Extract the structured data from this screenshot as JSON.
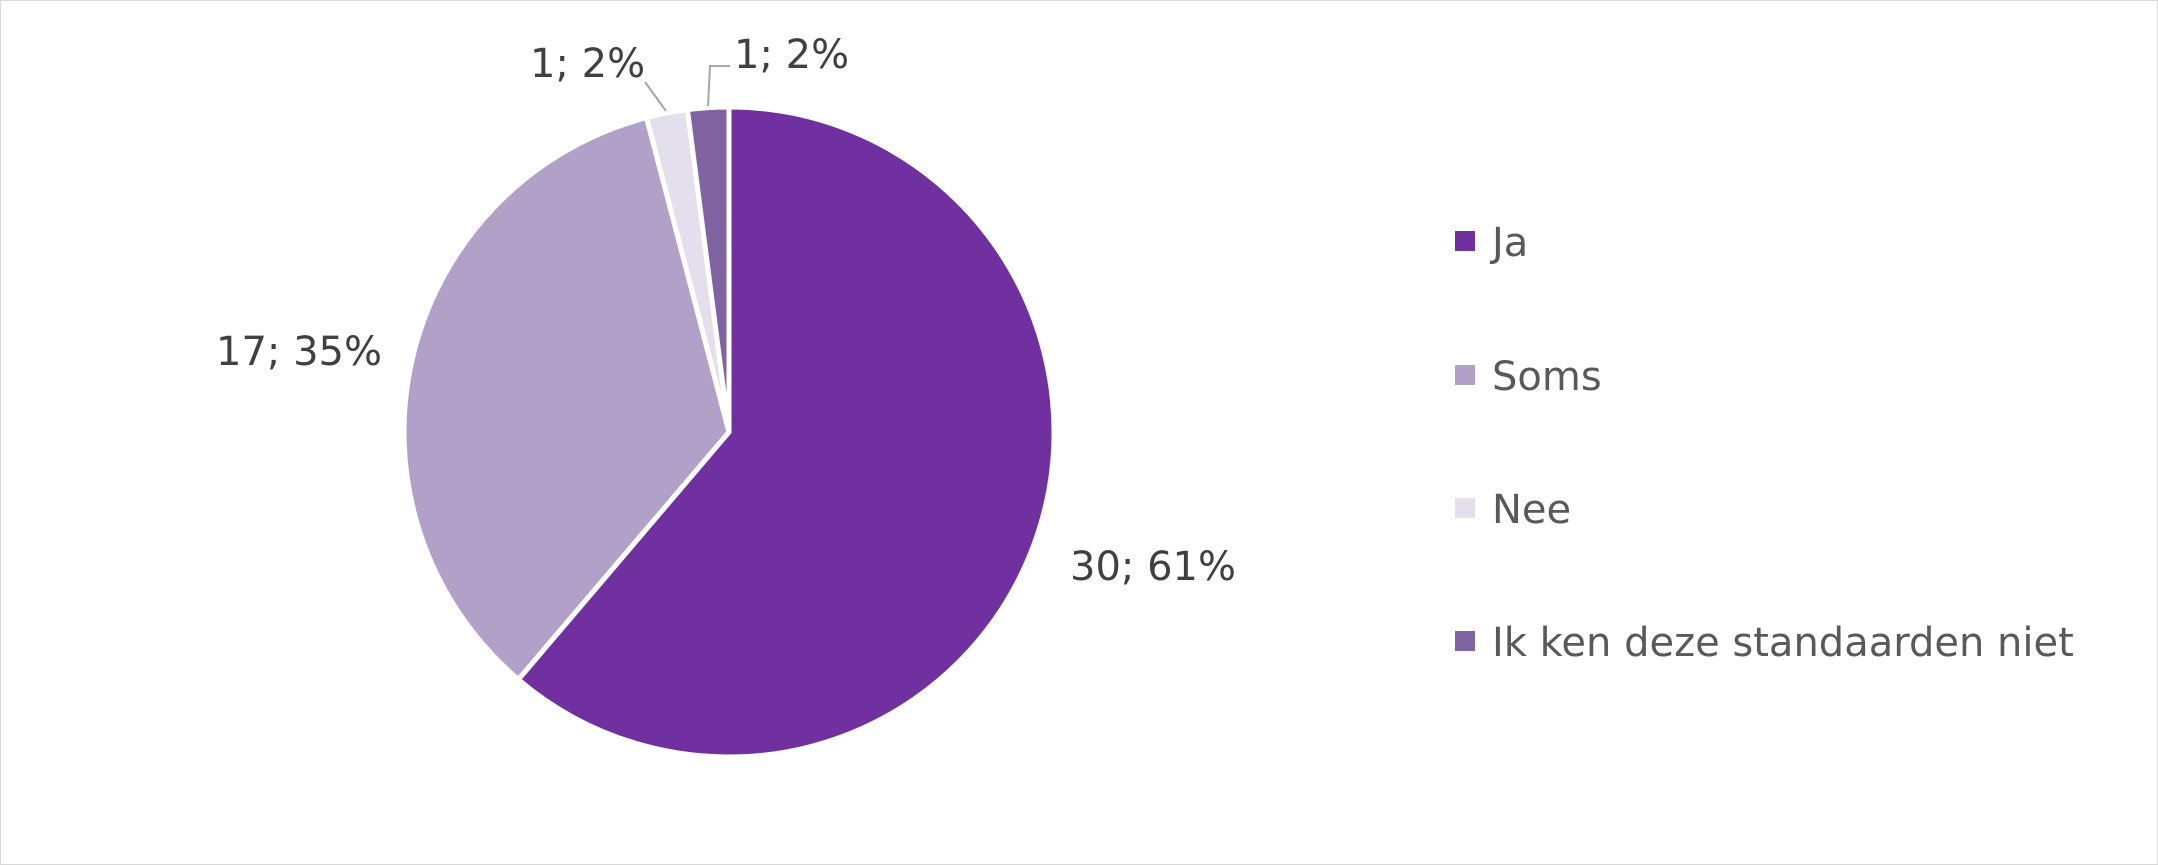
{
  "chart_data": {
    "type": "pie",
    "categories": [
      "Ja",
      "Soms",
      "Nee",
      "Ik ken deze standaarden niet"
    ],
    "values": [
      30,
      17,
      1,
      1
    ],
    "percentages": [
      61,
      35,
      2,
      2
    ],
    "data_labels": [
      "30; 61%",
      "17; 35%",
      "1; 2%",
      "1; 2%"
    ],
    "colors": [
      "#7030a0",
      "#b1a0c7",
      "#e4dfec",
      "#8064a2"
    ],
    "legend": {
      "position": "right",
      "entries": [
        "Ja",
        "Soms",
        "Nee",
        "Ik ken deze standaarden niet"
      ]
    },
    "start_angle": "12 o'clock",
    "direction": "clockwise"
  }
}
